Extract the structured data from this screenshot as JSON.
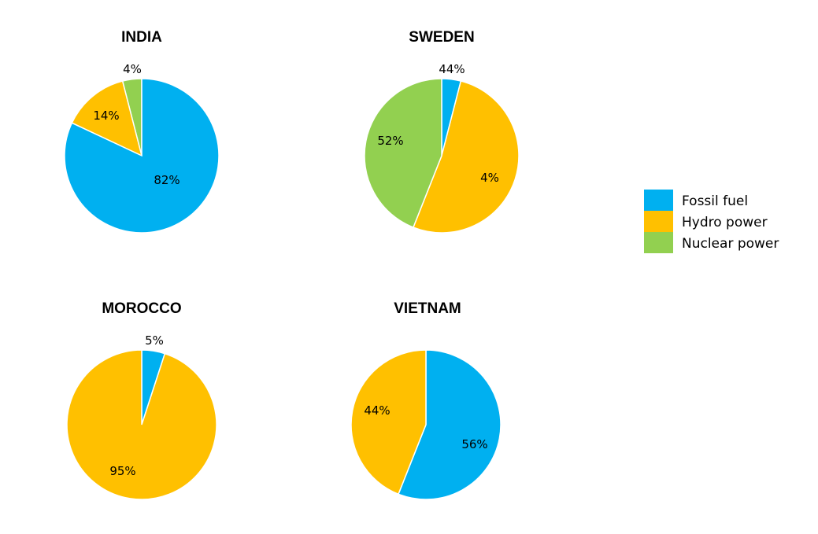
{
  "chart_data": {
    "type": "pie",
    "legend": {
      "placement": "right",
      "entries": [
        {
          "name": "Fossil fuel",
          "color": "#00B0F0"
        },
        {
          "name": "Hydro power",
          "color": "#FFC000"
        },
        {
          "name": "Nuclear power",
          "color": "#92D050"
        }
      ]
    },
    "pies": [
      {
        "title": "INDIA",
        "slices": [
          {
            "series": "Fossil fuel",
            "value": 82,
            "label": "82%"
          },
          {
            "series": "Hydro power",
            "value": 14,
            "label": "14%"
          },
          {
            "series": "Nuclear power",
            "value": 4,
            "label": "4%"
          }
        ]
      },
      {
        "title": "SWEDEN",
        "slices": [
          {
            "series": "Fossil fuel",
            "value": 4,
            "label": "4%"
          },
          {
            "series": "Hydro power",
            "value": 52,
            "label": "52%"
          },
          {
            "series": "Nuclear power",
            "value": 44,
            "label": "44%"
          }
        ]
      },
      {
        "title": "MOROCCO",
        "slices": [
          {
            "series": "Fossil fuel",
            "value": 5,
            "label": "5%"
          },
          {
            "series": "Hydro power",
            "value": 95,
            "label": "95%"
          }
        ]
      },
      {
        "title": "VIETNAM",
        "slices": [
          {
            "series": "Fossil fuel",
            "value": 56,
            "label": "56%"
          },
          {
            "series": "Hydro power",
            "value": 44,
            "label": "44%"
          }
        ]
      }
    ]
  }
}
